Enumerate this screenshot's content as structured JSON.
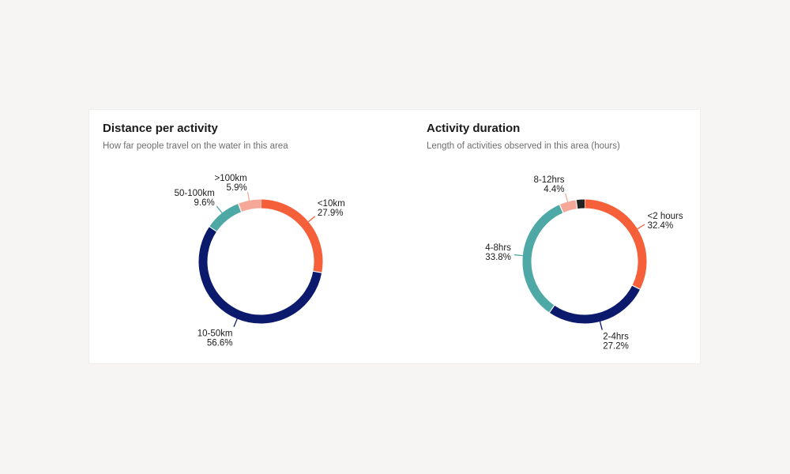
{
  "chart_data": [
    {
      "type": "pie",
      "title": "Distance per activity",
      "subtitle": "How far people travel on the water in this area",
      "slices": [
        {
          "label": "<10km",
          "value": 27.9,
          "value_label": "27.9%",
          "color": "#f5603a"
        },
        {
          "label": "10-50km",
          "value": 56.6,
          "value_label": "56.6%",
          "color": "#0c1a6e"
        },
        {
          "label": "50-100km",
          "value": 9.6,
          "value_label": "9.6%",
          "color": "#4ea9a6"
        },
        {
          "label": ">100km",
          "value": 5.9,
          "value_label": "5.9%",
          "color": "#f6a898"
        }
      ]
    },
    {
      "type": "pie",
      "title": "Activity duration",
      "subtitle": "Length of activities observed in this area (hours)",
      "slices": [
        {
          "label": "<2 hours",
          "value": 32.4,
          "value_label": "32.4%",
          "color": "#f5603a"
        },
        {
          "label": "2-4hrs",
          "value": 27.2,
          "value_label": "27.2%",
          "color": "#0c1a6e"
        },
        {
          "label": "4-8hrs",
          "value": 33.8,
          "value_label": "33.8%",
          "color": "#4ea9a6"
        },
        {
          "label": "8-12hrs",
          "value": 4.4,
          "value_label": "4.4%",
          "color": "#f6a898"
        },
        {
          "label": "",
          "value": 2.2,
          "value_label": "",
          "color": "#222222"
        }
      ]
    }
  ]
}
